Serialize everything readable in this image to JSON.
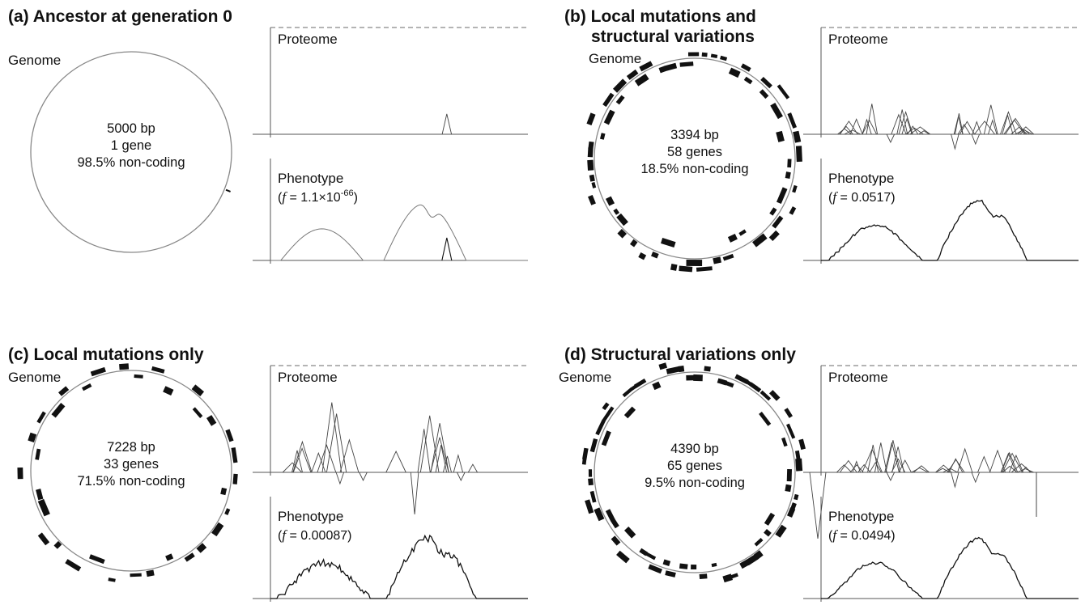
{
  "figure": {
    "panels": [
      {
        "id": "a",
        "title_lines": [
          "(a) Ancestor at generation 0"
        ],
        "genome_label": "Genome",
        "genome": {
          "bp": "5000 bp",
          "genes": "1 gene",
          "noncoding": "98.5% non-coding",
          "n_genes": 1
        },
        "proteome_label": "Proteome",
        "phenotype_label": "Phenotype",
        "fitness": {
          "prefix": "(",
          "symbol": "f",
          "eq": " = ",
          "mantissa": "1.1×10",
          "exponent": "-66",
          "suffix": ")"
        },
        "proteome_peaks": [
          {
            "x": 0.685,
            "h": 0.19,
            "w": 0.018
          }
        ],
        "proteome_has_negatives": false,
        "phenotype_kind": "ancestor",
        "extra_spike": null
      },
      {
        "id": "b",
        "title_lines": [
          "(b) Local mutations and",
          "structural variations"
        ],
        "genome_label": "Genome",
        "genome": {
          "bp": "3394 bp",
          "genes": "58 genes",
          "noncoding": "18.5% non-coding",
          "n_genes": 58
        },
        "proteome_label": "Proteome",
        "phenotype_label": "Phenotype",
        "fitness": {
          "prefix": "(",
          "symbol": "f",
          "eq": " = ",
          "mantissa": "0.0517",
          "exponent": "",
          "suffix": ")"
        },
        "proteome_peaks": [],
        "proteome_has_negatives": true,
        "phenotype_kind": "evolved",
        "extra_spike": null
      },
      {
        "id": "c",
        "title_lines": [
          "(c) Local mutations only"
        ],
        "genome_label": "Genome",
        "genome": {
          "bp": "7228 bp",
          "genes": "33 genes",
          "noncoding": "71.5% non-coding",
          "n_genes": 33
        },
        "proteome_label": "Proteome",
        "phenotype_label": "Phenotype",
        "fitness": {
          "prefix": "(",
          "symbol": "f",
          "eq": " = ",
          "mantissa": "0.00087",
          "exponent": "",
          "suffix": ")"
        },
        "proteome_peaks": [],
        "proteome_has_negatives": true,
        "phenotype_kind": "evolved",
        "extra_spike": null
      },
      {
        "id": "d",
        "title_lines": [
          "(d) Structural variations only"
        ],
        "genome_label": "Genome",
        "genome": {
          "bp": "4390 bp",
          "genes": "65 genes",
          "noncoding": "9.5% non-coding",
          "n_genes": 65
        },
        "proteome_label": "Proteome",
        "phenotype_label": "Phenotype",
        "fitness": {
          "prefix": "(",
          "symbol": "f",
          "eq": " = ",
          "mantissa": "0.0494",
          "exponent": "",
          "suffix": ")"
        },
        "proteome_peaks": [],
        "proteome_has_negatives": true,
        "phenotype_kind": "evolved",
        "extra_spike": {
          "side": "both"
        }
      }
    ],
    "colors": {
      "ink": "#111111",
      "circle": "#888888",
      "axis": "#555555",
      "dashed": "#888888"
    }
  }
}
